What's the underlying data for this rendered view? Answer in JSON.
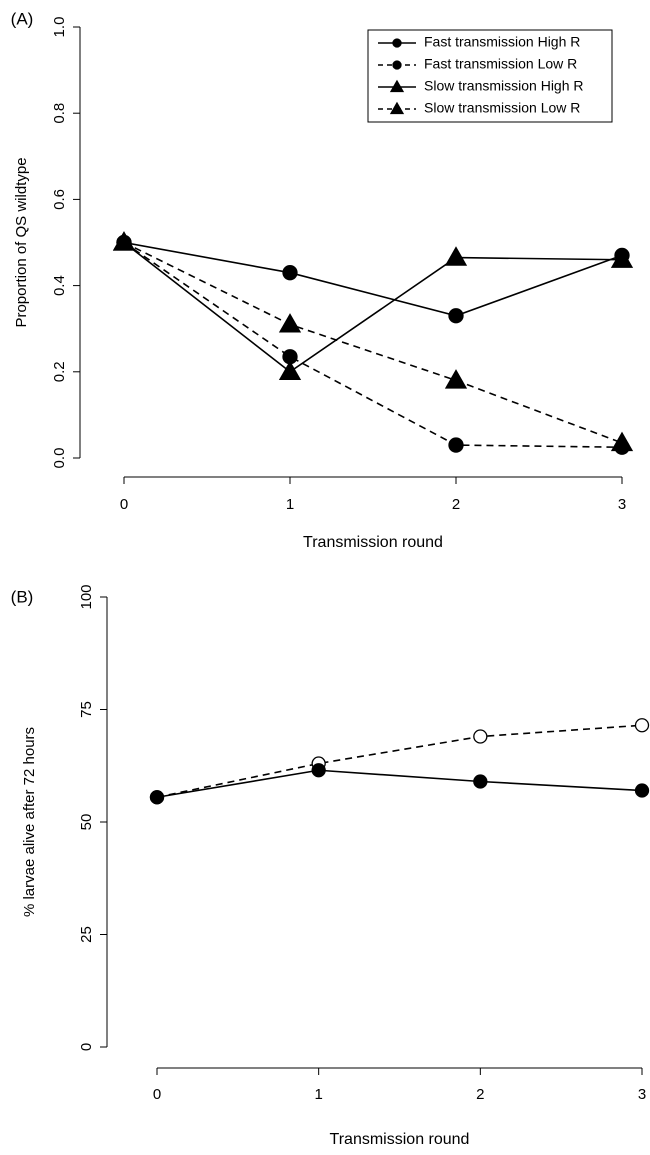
{
  "chart_data": [
    {
      "type": "line",
      "panel_label": "(A)",
      "x_label": "Transmission round",
      "y_label": "Proportion of QS wildtype",
      "x": [
        0,
        1,
        2,
        3
      ],
      "xlim": [
        0,
        3
      ],
      "xticks": [
        0,
        1,
        2,
        3
      ],
      "ylim": [
        0,
        1
      ],
      "yticks": [
        {
          "value": 0,
          "label": "0.0"
        },
        0.2,
        0.4,
        0.6,
        0.8,
        {
          "value": 1,
          "label": "1.0"
        }
      ],
      "legend": "top-right",
      "series": [
        {
          "name": "Fast transmission High R",
          "color": "#000000",
          "marker": "circle",
          "dashed": false,
          "values": [
            0.5,
            0.43,
            0.33,
            0.47
          ]
        },
        {
          "name": "Fast transmission Low R",
          "color": "#000000",
          "marker": "circle",
          "dashed": true,
          "values": [
            0.5,
            0.235,
            0.03,
            0.025
          ]
        },
        {
          "name": "Slow transmission High R",
          "color": "#000000",
          "marker": "triangle",
          "dashed": false,
          "values": [
            0.5,
            0.2,
            0.465,
            0.46
          ]
        },
        {
          "name": "Slow transmission Low R",
          "color": "#000000",
          "marker": "triangle",
          "dashed": true,
          "values": [
            0.5,
            0.31,
            0.18,
            0.035
          ]
        }
      ]
    },
    {
      "type": "line",
      "panel_label": "(B)",
      "x_label": "Transmission round",
      "y_label": "% larvae alive after 72 hours",
      "x": [
        0,
        1,
        2,
        3
      ],
      "xlim": [
        0,
        3
      ],
      "xticks": [
        0,
        1,
        2,
        3
      ],
      "ylim": [
        0,
        100
      ],
      "yticks": [
        0,
        25,
        50,
        75,
        100
      ],
      "series": [
        {
          "color": "#000000",
          "marker": "circle",
          "marker_fill": "#ffffff",
          "dashed": true,
          "values": [
            55.5,
            63,
            69,
            71.5
          ]
        },
        {
          "color": "#000000",
          "marker": "circle",
          "dashed": false,
          "values": [
            55.5,
            61.5,
            59,
            57
          ]
        }
      ]
    }
  ]
}
